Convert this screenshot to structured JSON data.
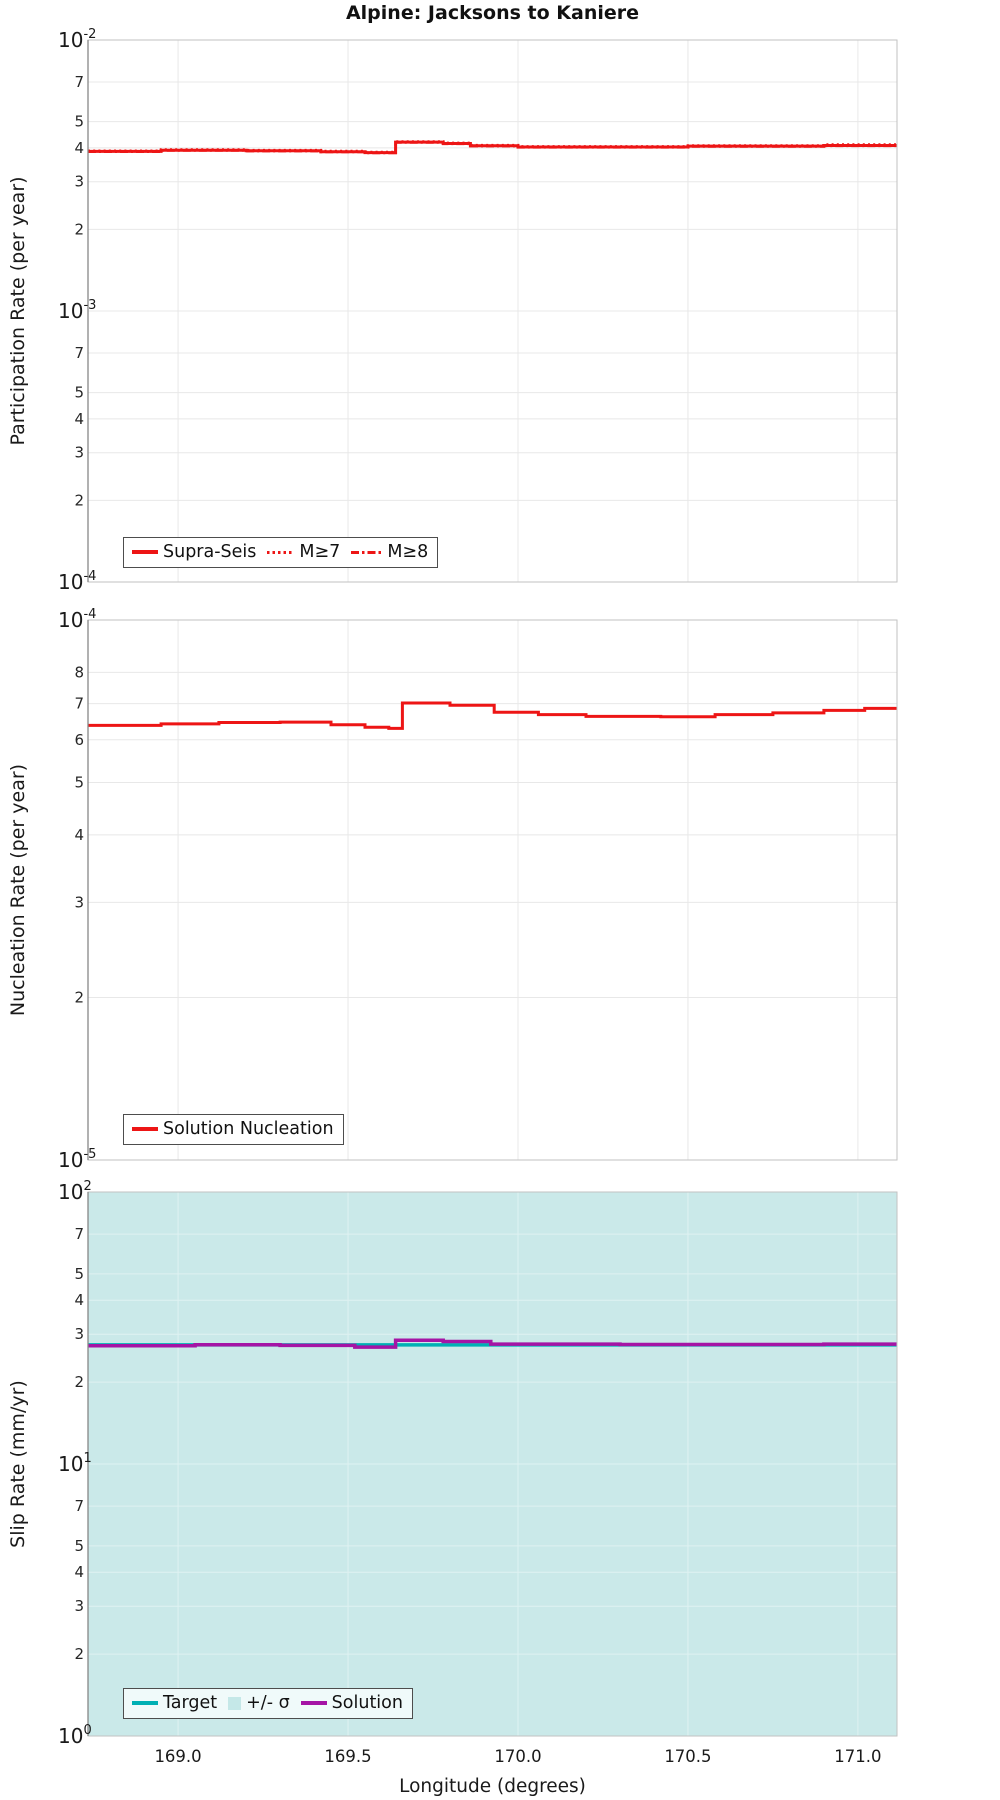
{
  "page": {
    "title": "Alpine: Jacksons to Kaniere",
    "xlabel": "Longitude (degrees)",
    "xticks": [
      {
        "v": 169.0,
        "label": "169.0"
      },
      {
        "v": 169.5,
        "label": "169.5"
      },
      {
        "v": 170.0,
        "label": "170.0"
      },
      {
        "v": 170.5,
        "label": "170.5"
      },
      {
        "v": 171.0,
        "label": "171.0"
      }
    ]
  },
  "colors": {
    "red": "#ED1515",
    "teal": "#00B0B4",
    "purple": "#A514A5",
    "band": "#CAE9E9",
    "legend3_bg": "#F0FAFA"
  },
  "chart_data": [
    {
      "type": "line",
      "name": "participation",
      "ylabel": "Participation Rate (per year)",
      "yscale": "log",
      "ylim": [
        0.0001,
        0.01
      ],
      "xlim": [
        168.735,
        171.115
      ],
      "ytick_decades": [
        {
          "v": 0.01,
          "exp": "-2"
        },
        {
          "v": 0.001,
          "exp": "-3"
        },
        {
          "v": 0.0001,
          "exp": "-4"
        }
      ],
      "ytick_minor": [
        {
          "v": 0.007,
          "label": "7"
        },
        {
          "v": 0.005,
          "label": "5"
        },
        {
          "v": 0.004,
          "label": "4"
        },
        {
          "v": 0.003,
          "label": "3"
        },
        {
          "v": 0.002,
          "label": "2"
        },
        {
          "v": 0.0007,
          "label": "7"
        },
        {
          "v": 0.0005,
          "label": "5"
        },
        {
          "v": 0.0004,
          "label": "4"
        },
        {
          "v": 0.0003,
          "label": "3"
        },
        {
          "v": 0.0002,
          "label": "2"
        }
      ],
      "series": [
        {
          "name": "Supra-Seis",
          "color": "#ED1515",
          "style": "solid",
          "width": 3,
          "segments": [
            [
              168.735,
              168.95,
              0.00388
            ],
            [
              168.95,
              169.2,
              0.00392
            ],
            [
              169.2,
              169.42,
              0.0039
            ],
            [
              169.42,
              169.55,
              0.00387
            ],
            [
              169.55,
              169.64,
              0.00384
            ],
            [
              169.64,
              169.78,
              0.0042
            ],
            [
              169.78,
              169.86,
              0.00415
            ],
            [
              169.86,
              170.0,
              0.00407
            ],
            [
              170.0,
              170.5,
              0.00403
            ],
            [
              170.5,
              170.9,
              0.00406
            ],
            [
              170.9,
              171.115,
              0.00408
            ]
          ]
        },
        {
          "name": "M≥7",
          "color": "#ED1515",
          "style": "dotted",
          "width": 2.6,
          "segments": [
            [
              168.735,
              168.95,
              0.0039
            ],
            [
              168.95,
              169.2,
              0.00394
            ],
            [
              169.2,
              169.42,
              0.00392
            ],
            [
              169.42,
              169.55,
              0.00389
            ],
            [
              169.55,
              169.64,
              0.00386
            ],
            [
              169.64,
              169.78,
              0.00422
            ],
            [
              169.78,
              169.86,
              0.00417
            ],
            [
              169.86,
              170.0,
              0.00409
            ],
            [
              170.0,
              170.5,
              0.00405
            ],
            [
              170.5,
              170.9,
              0.00408
            ],
            [
              170.9,
              171.115,
              0.00411
            ]
          ]
        },
        {
          "name": "M≥8",
          "color": "#ED1515",
          "style": "dashdot",
          "width": 2.6,
          "segments": [
            [
              168.735,
              168.95,
              0.00387
            ],
            [
              168.95,
              169.2,
              0.00391
            ],
            [
              169.2,
              169.42,
              0.00389
            ],
            [
              169.42,
              169.55,
              0.00386
            ],
            [
              169.55,
              169.64,
              0.00383
            ],
            [
              169.64,
              169.78,
              0.00419
            ],
            [
              169.78,
              169.86,
              0.00414
            ],
            [
              169.86,
              170.0,
              0.00406
            ],
            [
              170.0,
              170.5,
              0.00402
            ],
            [
              170.5,
              170.9,
              0.00405
            ],
            [
              170.9,
              171.115,
              0.00407
            ]
          ]
        }
      ],
      "legend": {
        "items": [
          {
            "label": "Supra-Seis",
            "swatch": "solid",
            "color": "#ED1515"
          },
          {
            "label": "M≥7",
            "swatch": "dotted",
            "color": "#ED1515"
          },
          {
            "label": "M≥8",
            "swatch": "dashdot",
            "color": "#ED1515"
          }
        ]
      }
    },
    {
      "type": "line",
      "name": "nucleation",
      "ylabel": "Nucleation Rate (per year)",
      "yscale": "log",
      "ylim": [
        1e-05,
        0.0001
      ],
      "xlim": [
        168.735,
        171.115
      ],
      "ytick_decades": [
        {
          "v": 0.0001,
          "exp": "-4"
        },
        {
          "v": 1e-05,
          "exp": "-5"
        }
      ],
      "ytick_minor": [
        {
          "v": 8e-05,
          "label": "8"
        },
        {
          "v": 7e-05,
          "label": "7"
        },
        {
          "v": 6e-05,
          "label": "6"
        },
        {
          "v": 5e-05,
          "label": "5"
        },
        {
          "v": 4e-05,
          "label": "4"
        },
        {
          "v": 3e-05,
          "label": "3"
        },
        {
          "v": 2e-05,
          "label": "2"
        }
      ],
      "series": [
        {
          "name": "Solution Nucleation",
          "color": "#ED1515",
          "style": "solid",
          "width": 3,
          "segments": [
            [
              168.735,
              168.95,
              6.38e-05
            ],
            [
              168.95,
              169.12,
              6.42e-05
            ],
            [
              169.12,
              169.3,
              6.46e-05
            ],
            [
              169.3,
              169.45,
              6.47e-05
            ],
            [
              169.45,
              169.55,
              6.4e-05
            ],
            [
              169.55,
              169.62,
              6.33e-05
            ],
            [
              169.62,
              169.66,
              6.3e-05
            ],
            [
              169.66,
              169.8,
              7.02e-05
            ],
            [
              169.8,
              169.93,
              6.95e-05
            ],
            [
              169.93,
              170.06,
              6.75e-05
            ],
            [
              170.06,
              170.2,
              6.68e-05
            ],
            [
              170.2,
              170.42,
              6.63e-05
            ],
            [
              170.42,
              170.58,
              6.62e-05
            ],
            [
              170.58,
              170.75,
              6.68e-05
            ],
            [
              170.75,
              170.9,
              6.73e-05
            ],
            [
              170.9,
              171.02,
              6.8e-05
            ],
            [
              171.02,
              171.115,
              6.86e-05
            ]
          ]
        }
      ],
      "legend": {
        "items": [
          {
            "label": "Solution Nucleation",
            "swatch": "solid",
            "color": "#ED1515"
          }
        ]
      }
    },
    {
      "type": "line",
      "name": "sliprate",
      "ylabel": "Slip Rate (mm/yr)",
      "yscale": "log",
      "ylim": [
        1,
        100
      ],
      "xlim": [
        168.735,
        171.115
      ],
      "ytick_decades": [
        {
          "v": 100,
          "exp": "2"
        },
        {
          "v": 10,
          "exp": "1"
        },
        {
          "v": 1,
          "exp": "0"
        }
      ],
      "ytick_minor": [
        {
          "v": 70,
          "label": "7"
        },
        {
          "v": 50,
          "label": "5"
        },
        {
          "v": 40,
          "label": "4"
        },
        {
          "v": 30,
          "label": "3"
        },
        {
          "v": 20,
          "label": "2"
        },
        {
          "v": 7,
          "label": "7"
        },
        {
          "v": 5,
          "label": "5"
        },
        {
          "v": 4,
          "label": "4"
        },
        {
          "v": 3,
          "label": "3"
        },
        {
          "v": 2,
          "label": "2"
        }
      ],
      "band": {
        "label": "+/- σ",
        "color": "#CAE9E9",
        "ymin": 0.5,
        "ymax": 200
      },
      "series": [
        {
          "name": "Target",
          "color": "#00B0B4",
          "style": "solid",
          "width": 3.5,
          "segments": [
            [
              168.735,
              171.115,
              27.4
            ]
          ]
        },
        {
          "name": "Solution",
          "color": "#A514A5",
          "style": "solid",
          "width": 3.5,
          "segments": [
            [
              168.735,
              169.05,
              27.2
            ],
            [
              169.05,
              169.3,
              27.45
            ],
            [
              169.3,
              169.52,
              27.3
            ],
            [
              169.52,
              169.64,
              26.9
            ],
            [
              169.64,
              169.78,
              28.5
            ],
            [
              169.78,
              169.92,
              28.2
            ],
            [
              169.92,
              170.3,
              27.6
            ],
            [
              170.3,
              170.9,
              27.5
            ],
            [
              170.9,
              171.115,
              27.6
            ]
          ]
        }
      ],
      "legend": {
        "items": [
          {
            "label": "Target",
            "swatch": "solid",
            "color": "#00B0B4"
          },
          {
            "label": "+/- σ",
            "swatch": "square",
            "color": "#C5E8E8"
          },
          {
            "label": "Solution",
            "swatch": "solid",
            "color": "#A514A5"
          }
        ]
      }
    }
  ]
}
